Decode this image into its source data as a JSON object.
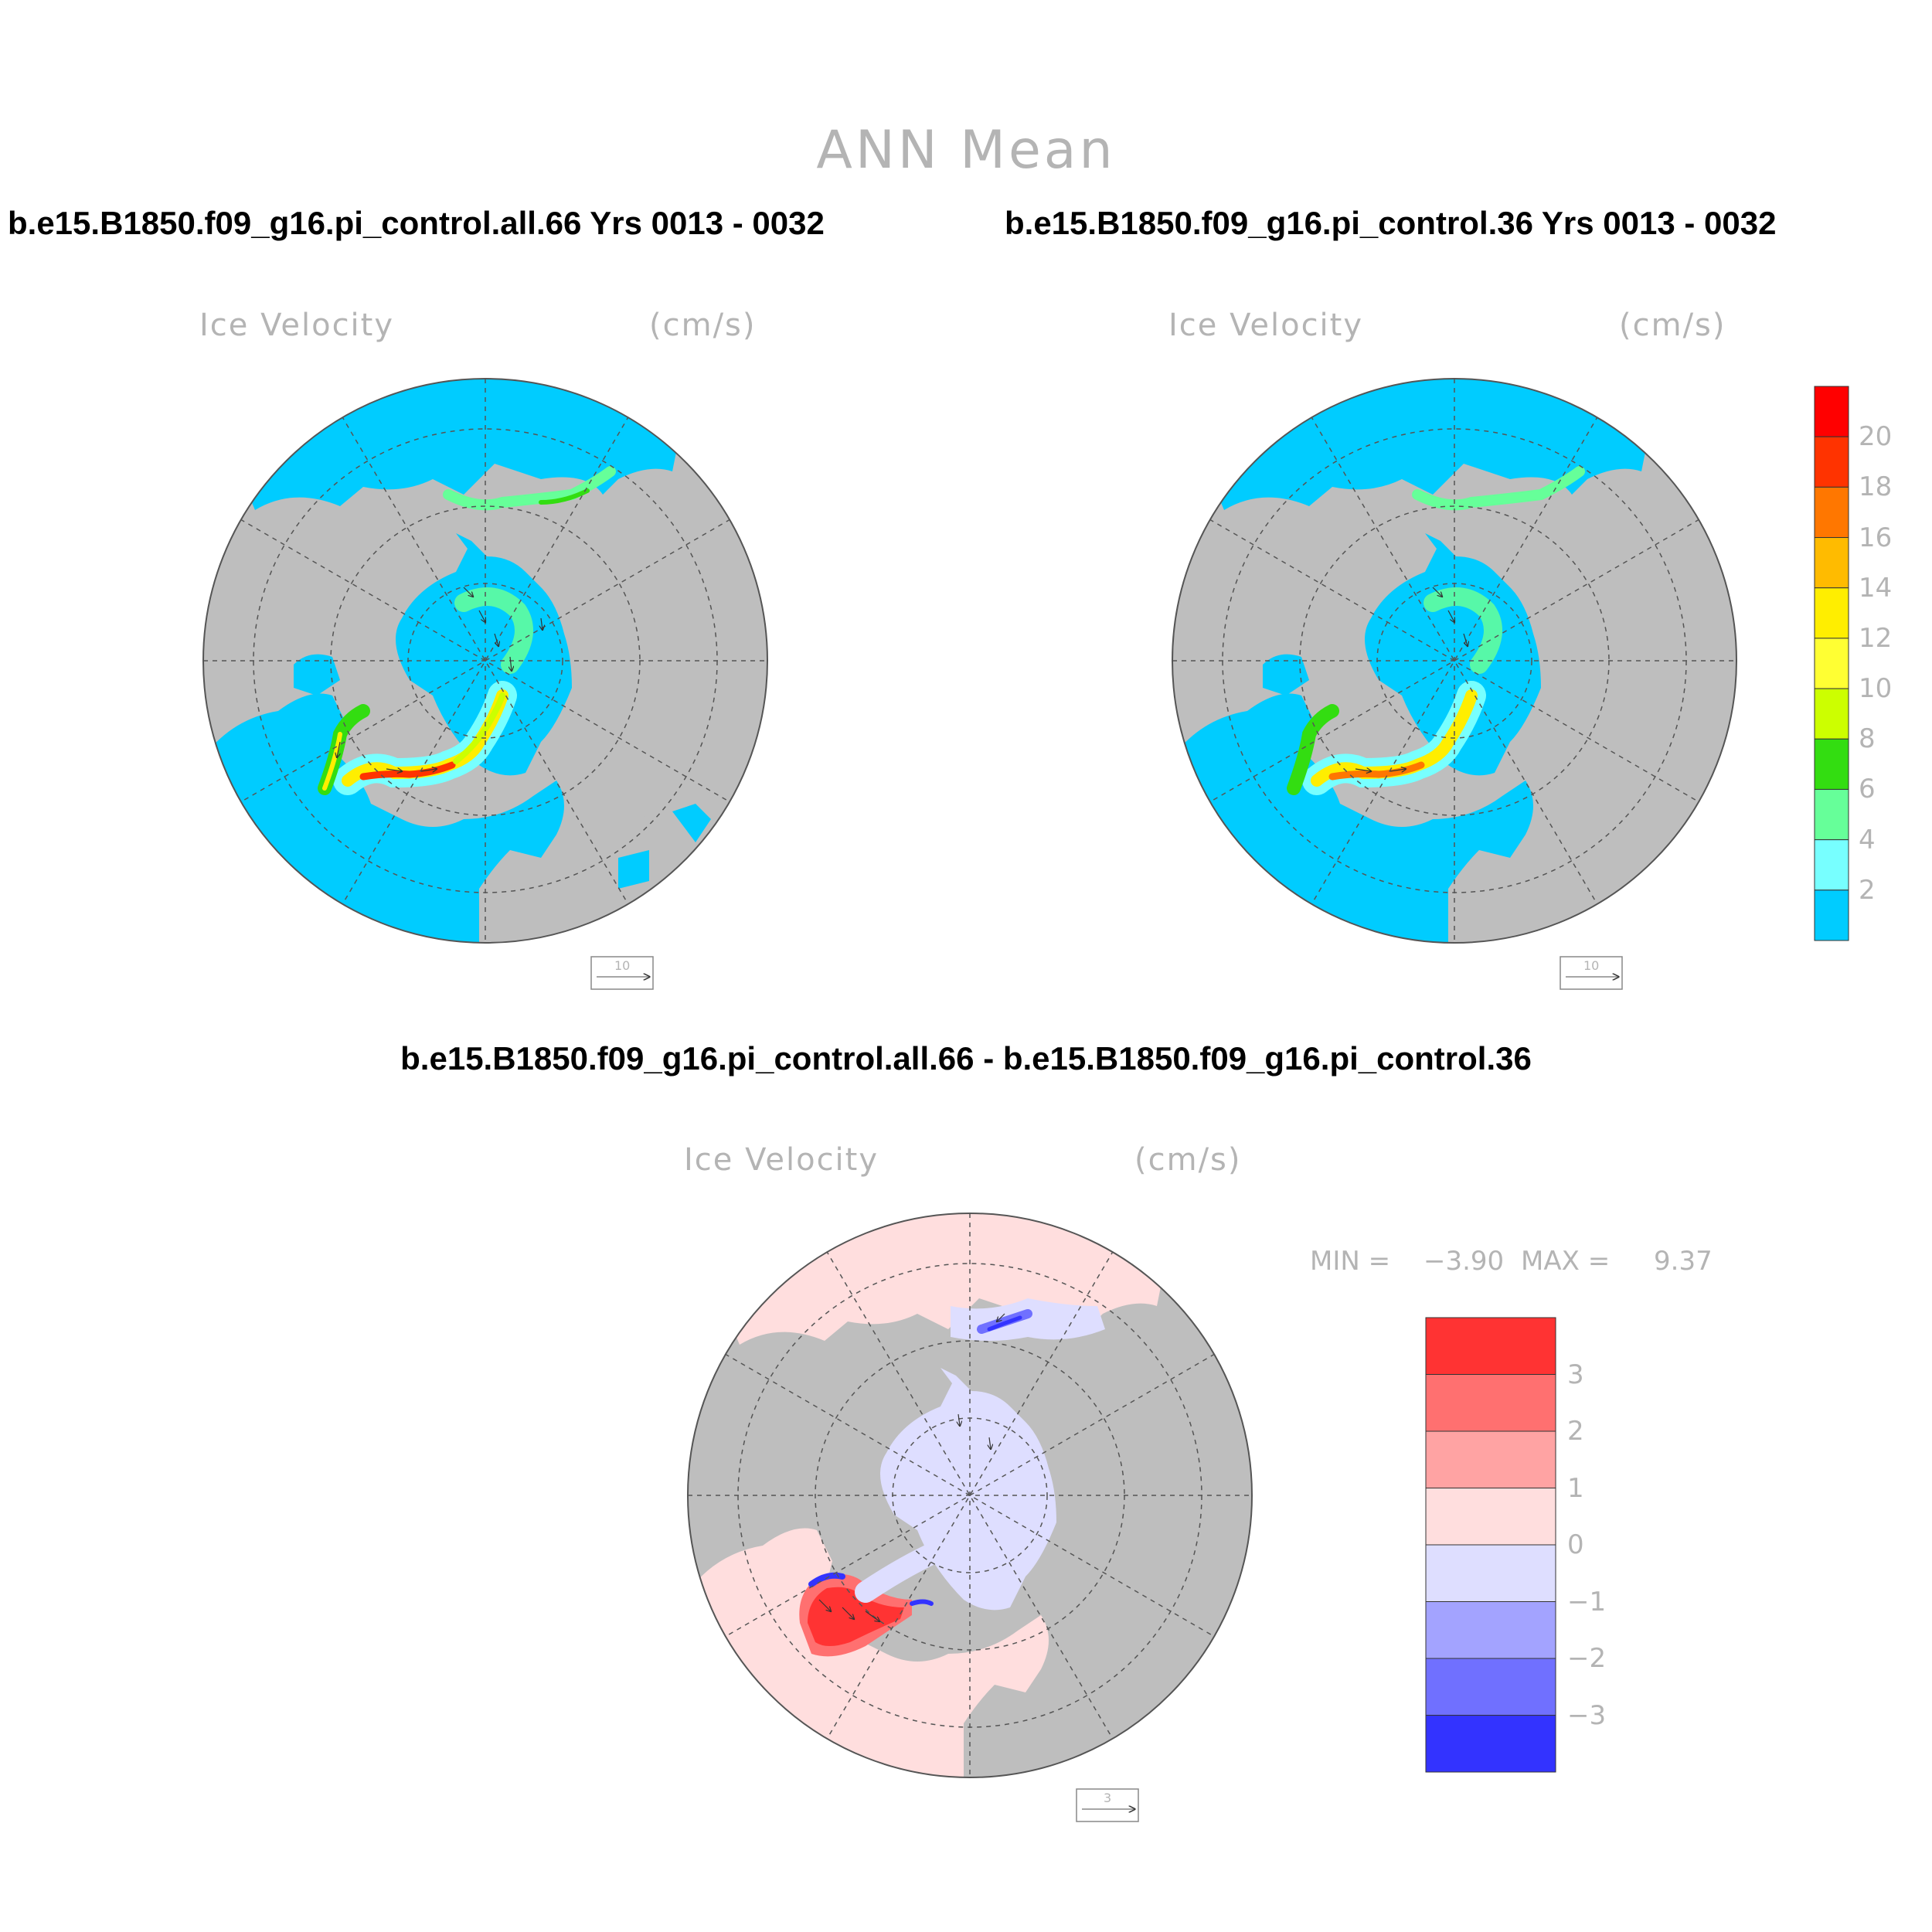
{
  "main_title": "ANN Mean",
  "panels": [
    {
      "case_title": "b.e15.B1850.f09_g16.pi_control.all.66  Yrs 0013 - 0032",
      "variable": "Ice Velocity",
      "units": "(cm/s)",
      "reference_vector": "10"
    },
    {
      "case_title": "b.e15.B1850.f09_g16.pi_control.36  Yrs 0013 - 0032",
      "variable": "Ice Velocity",
      "units": "(cm/s)",
      "reference_vector": "10"
    },
    {
      "case_title": "b.e15.B1850.f09_g16.pi_control.all.66 - b.e15.B1850.f09_g16.pi_control.36",
      "variable": "Ice Velocity",
      "units": "(cm/s)",
      "reference_vector": "3",
      "min_label": "MIN =",
      "min_value": "−3.90",
      "max_label": "MAX =",
      "max_value": "9.37"
    }
  ],
  "colorbar_top": {
    "labels": [
      "20",
      "18",
      "16",
      "14",
      "12",
      "10",
      "8",
      "6",
      "4",
      "2"
    ],
    "colors": [
      "#ff0000",
      "#ff3300",
      "#ff7700",
      "#ffbb00",
      "#ffee00",
      "#ffff33",
      "#ccff00",
      "#33dd11",
      "#66ff99",
      "#77ffff",
      "#00ccff"
    ]
  },
  "colorbar_diff": {
    "labels": [
      "3",
      "2",
      "1",
      "0",
      "−1",
      "−2",
      "−3"
    ],
    "colors": [
      "#ff3333",
      "#ff7070",
      "#ffa3a3",
      "#ffdede",
      "#dedeff",
      "#a3a3ff",
      "#7070ff",
      "#3333ff"
    ]
  },
  "map_colors": {
    "land": "#bebebe",
    "ocean_top": "#00ccff",
    "ocean_diff": "#ffdede"
  }
}
